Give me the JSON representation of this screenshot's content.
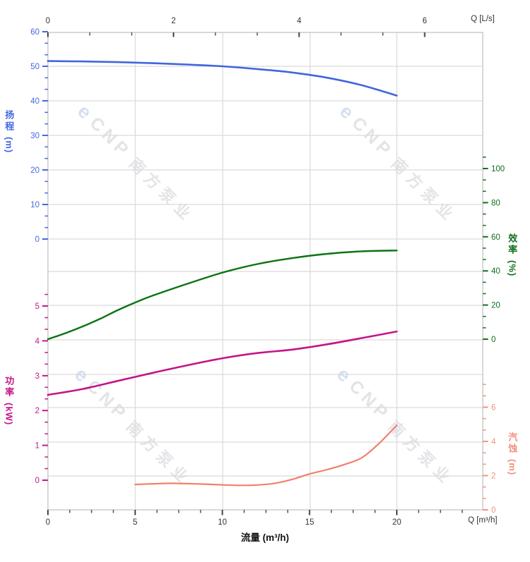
{
  "watermark": {
    "logo_glyph": "e",
    "brand": "CNP",
    "brand_cn": "南方泵业"
  },
  "chart_data": {
    "type": "line",
    "title": "",
    "x_axis_bottom": {
      "title": "流量 (m³/h)",
      "unit_label": "Q [m³/h]",
      "ticks": [
        0,
        5,
        10,
        15,
        20
      ],
      "minor_divisions": 4,
      "extra_minors_after": 3,
      "range": [
        0,
        24.9
      ]
    },
    "x_axis_top": {
      "unit_label": "Q [L/s]",
      "ticks": [
        0,
        2,
        4,
        6
      ],
      "minor_divisions": 3,
      "extra_minors_after": 0,
      "range": [
        0,
        6.92
      ]
    },
    "y_axes": {
      "head": {
        "title": "扬程",
        "unit": "(m)",
        "side": "left",
        "color": "#4468E0",
        "ticks": [
          60,
          50,
          40,
          30,
          20,
          10,
          0
        ],
        "minor_divisions": 3,
        "extra_minors_above": 0
      },
      "efficiency": {
        "title": "效率",
        "unit": "(%)",
        "side": "right",
        "color": "#0F6E1B",
        "ticks": [
          100,
          80,
          60,
          40,
          20,
          0
        ],
        "minor_divisions": 3,
        "extra_minors_above": 1
      },
      "power": {
        "title": "功率",
        "unit": "(kW)",
        "side": "left",
        "color": "#C51589",
        "ticks": [
          5,
          4,
          3,
          2,
          1,
          0
        ],
        "minor_divisions": 3,
        "extra_minors_above": 1
      },
      "npsh": {
        "title": "汽蚀",
        "unit": "(m)",
        "side": "right",
        "color": "#F2907C",
        "ticks": [
          6,
          4,
          2,
          0
        ],
        "minor_divisions": 3,
        "extra_minors_above": 2
      }
    },
    "grid": {
      "shown": true
    },
    "series": [
      {
        "name": "head-curve",
        "axis": "head",
        "color": "#4066DE",
        "width": 2.6,
        "points": [
          [
            0,
            51.5
          ],
          [
            2,
            51.4
          ],
          [
            4,
            51.2
          ],
          [
            6,
            50.9
          ],
          [
            8,
            50.5
          ],
          [
            10,
            50.0
          ],
          [
            12,
            49.2
          ],
          [
            14,
            48.2
          ],
          [
            16,
            46.7
          ],
          [
            18,
            44.5
          ],
          [
            20,
            41.5
          ]
        ]
      },
      {
        "name": "efficiency-curve",
        "axis": "efficiency",
        "color": "#0B7410",
        "width": 2.4,
        "points": [
          [
            0,
            0
          ],
          [
            1,
            3.5
          ],
          [
            2,
            7.5
          ],
          [
            3,
            12
          ],
          [
            4,
            17
          ],
          [
            5,
            21.5
          ],
          [
            6,
            25.5
          ],
          [
            8,
            32.5
          ],
          [
            10,
            39
          ],
          [
            12,
            44
          ],
          [
            14,
            47.5
          ],
          [
            16,
            50
          ],
          [
            18,
            51.5
          ],
          [
            20,
            52
          ]
        ]
      },
      {
        "name": "power-curve",
        "axis": "power",
        "color": "#C51589",
        "width": 2.6,
        "points": [
          [
            0,
            2.45
          ],
          [
            2,
            2.62
          ],
          [
            4,
            2.85
          ],
          [
            6,
            3.08
          ],
          [
            8,
            3.3
          ],
          [
            10,
            3.5
          ],
          [
            12,
            3.65
          ],
          [
            14,
            3.75
          ],
          [
            16,
            3.9
          ],
          [
            18,
            4.08
          ],
          [
            20,
            4.27
          ]
        ]
      },
      {
        "name": "npsh-curve",
        "axis": "npsh",
        "color": "#F2806A",
        "width": 2.2,
        "points": [
          [
            5,
            1.48
          ],
          [
            6,
            1.52
          ],
          [
            7,
            1.55
          ],
          [
            8,
            1.53
          ],
          [
            9,
            1.5
          ],
          [
            10,
            1.46
          ],
          [
            11,
            1.43
          ],
          [
            12,
            1.45
          ],
          [
            13,
            1.55
          ],
          [
            14,
            1.78
          ],
          [
            15,
            2.1
          ],
          [
            16,
            2.35
          ],
          [
            17,
            2.65
          ],
          [
            18,
            3.05
          ],
          [
            19,
            3.9
          ],
          [
            20,
            4.95
          ]
        ]
      }
    ]
  }
}
